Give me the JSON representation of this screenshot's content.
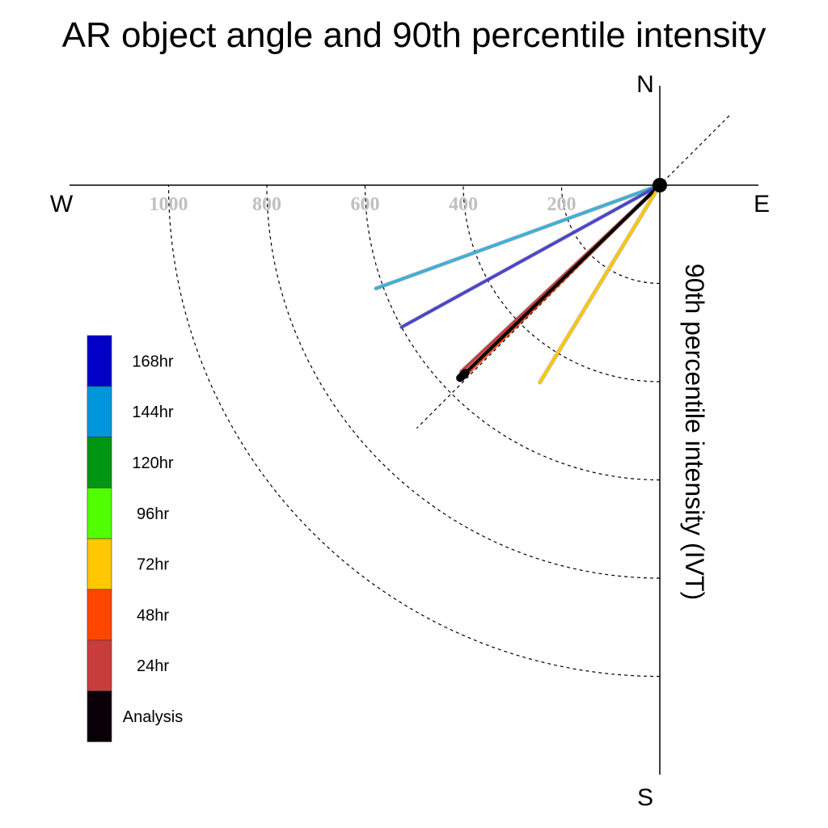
{
  "chart_data": {
    "type": "polar-vector",
    "title": "AR object angle and 90th percentile intensity",
    "ylabel": "90th percentile intensity (IVT)",
    "directions": {
      "north": "N",
      "south": "S",
      "east": "E",
      "west": "W"
    },
    "radial_ticks": [
      200,
      400,
      600,
      800,
      1000
    ],
    "radial_tick_labels": [
      "200",
      "400",
      "600",
      "800",
      "1000"
    ],
    "rmax": 1200,
    "grid": "dashed rings + diagonal reference",
    "legend_position": "left",
    "legend": [
      {
        "label": "168hr",
        "color": "#0000c8"
      },
      {
        "label": "144hr",
        "color": "#0096dc"
      },
      {
        "label": "120hr",
        "color": "#009614"
      },
      {
        "label": "96hr",
        "color": "#50ff00"
      },
      {
        "label": "72hr",
        "color": "#ffc800"
      },
      {
        "label": "48hr",
        "color": "#ff4600"
      },
      {
        "label": "24hr",
        "color": "#c83c3c"
      },
      {
        "label": "Analysis",
        "color": "#0a0008"
      }
    ],
    "series": [
      {
        "name": "144hr",
        "color": "#3cb0d8",
        "angle_deg_from_east": -160.0,
        "intensity": 615
      },
      {
        "name": "168hr",
        "color": "#4a44cc",
        "angle_deg_from_east": -151.2,
        "intensity": 600
      },
      {
        "name": "24hr",
        "color": "#c83c3c",
        "angle_deg_from_east": -136.8,
        "intensity": 555
      },
      {
        "name": "48hr",
        "color": "#ff4600",
        "angle_deg_from_east": -135.6,
        "intensity": 555
      },
      {
        "name": "Analysis",
        "color": "#000000",
        "angle_deg_from_east": -136.0,
        "intensity": 565
      },
      {
        "name": "72hr",
        "color": "#ffc800",
        "angle_deg_from_east": -121.3,
        "intensity": 470
      }
    ]
  }
}
